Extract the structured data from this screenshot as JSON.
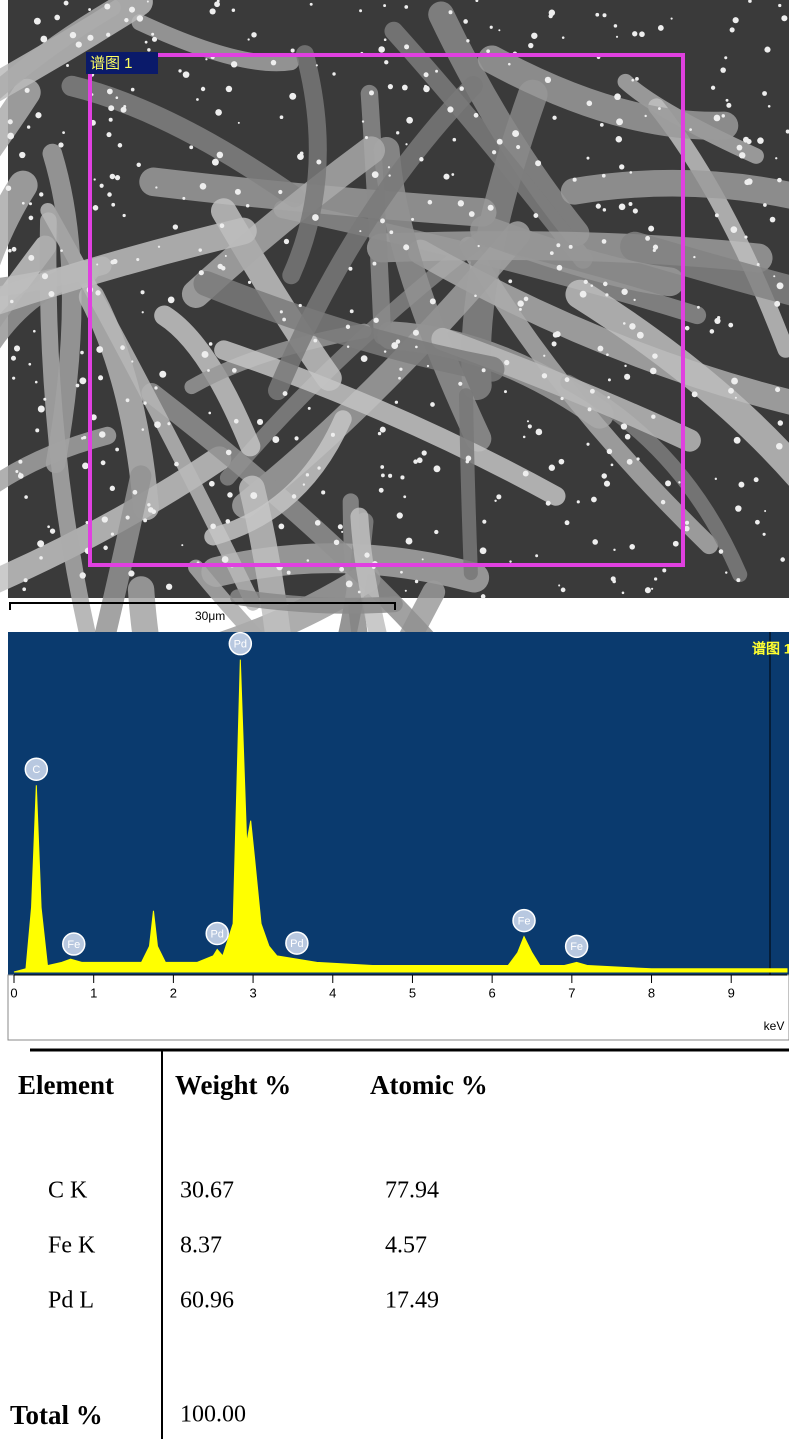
{
  "sem": {
    "region_label": "谱图 1",
    "scale_label": "30μm"
  },
  "chart_data": {
    "type": "area",
    "title": "谱图 1",
    "x_label": "keV",
    "color": "#ffff00",
    "x": [
      0,
      0.15,
      0.22,
      0.28,
      0.34,
      0.42,
      0.6,
      0.71,
      0.85,
      1.2,
      1.6,
      1.7,
      1.75,
      1.8,
      1.9,
      2.3,
      2.5,
      2.55,
      2.62,
      2.75,
      2.84,
      2.92,
      2.97,
      3.02,
      3.1,
      3.2,
      3.3,
      3.55,
      3.8,
      4.5,
      5.5,
      6.2,
      6.32,
      6.4,
      6.5,
      6.6,
      6.9,
      7.06,
      7.2,
      8,
      9,
      9.7
    ],
    "values": [
      0,
      1,
      20,
      58,
      20,
      2,
      3,
      4,
      3,
      3,
      3,
      8,
      19,
      8,
      3,
      3,
      5,
      7,
      5,
      15,
      97,
      40,
      47,
      35,
      15,
      8,
      5,
      4,
      3,
      2,
      2,
      2,
      6,
      11,
      6,
      2,
      2,
      3,
      2,
      1,
      1,
      1
    ],
    "xlim": [
      0,
      9.7
    ],
    "ylim": [
      0,
      100
    ],
    "xticks": [
      0,
      1,
      2,
      3,
      4,
      5,
      6,
      7,
      8,
      9
    ],
    "peaks": [
      {
        "label": "C",
        "x": 0.28
      },
      {
        "label": "Fe",
        "x": 0.75
      },
      {
        "label": "Pd",
        "x": 2.55
      },
      {
        "label": "Pd",
        "x": 2.84
      },
      {
        "label": "Pd",
        "x": 3.55
      },
      {
        "label": "Fe",
        "x": 6.4
      },
      {
        "label": "Fe",
        "x": 7.06
      }
    ]
  },
  "table": {
    "headers": [
      "Element",
      "Weight %",
      "Atomic %"
    ],
    "rows": [
      [
        "C K",
        "30.67",
        "77.94"
      ],
      [
        "Fe K",
        "8.37",
        "4.57"
      ],
      [
        "Pd L",
        "60.96",
        "17.49"
      ]
    ],
    "total": [
      "Total %",
      "100.00"
    ]
  }
}
